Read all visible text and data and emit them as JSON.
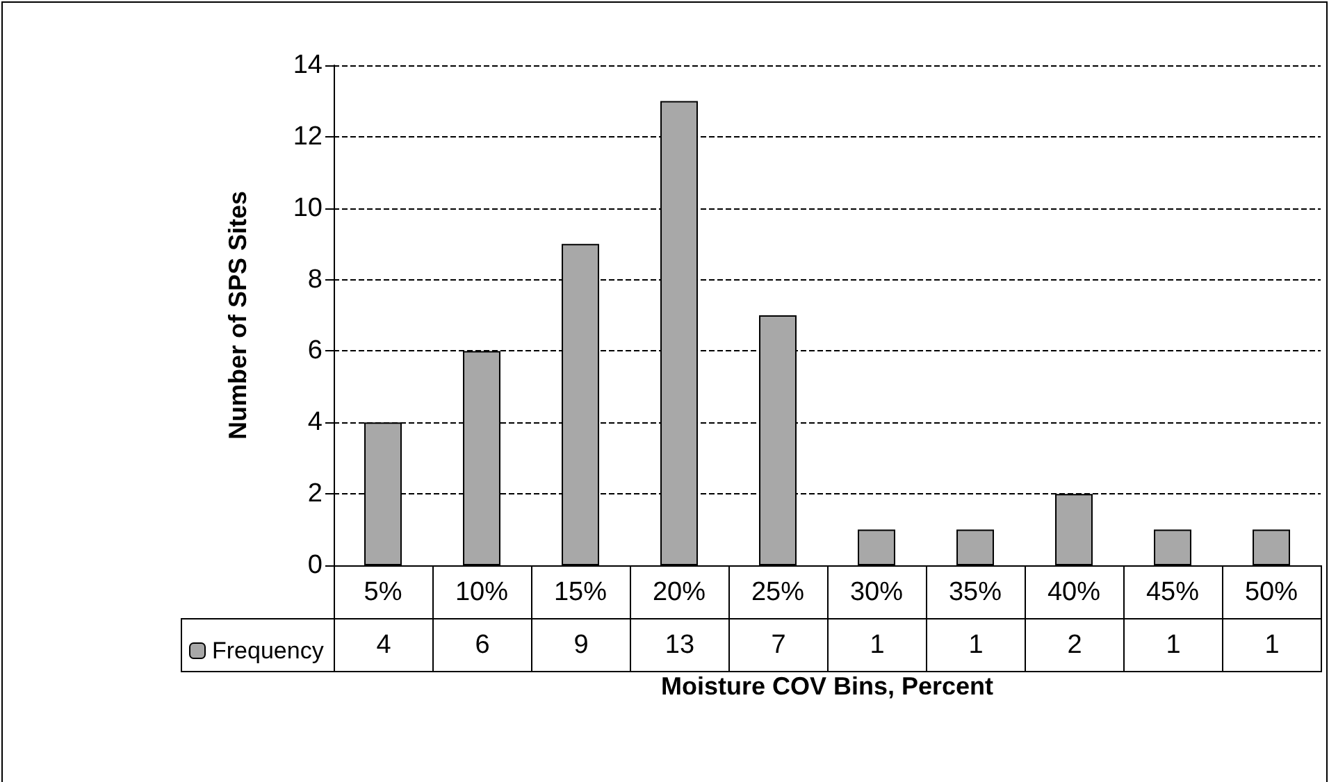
{
  "chart_data": {
    "type": "bar",
    "xlabel": "Moisture COV Bins, Percent",
    "ylabel": "Number of SPS Sites",
    "categories": [
      "5%",
      "10%",
      "15%",
      "20%",
      "25%",
      "30%",
      "35%",
      "40%",
      "45%",
      "50%"
    ],
    "series": [
      {
        "name": "Frequency",
        "color": "#a8a8a8",
        "values": [
          4,
          6,
          9,
          13,
          7,
          1,
          1,
          2,
          1,
          1
        ]
      }
    ],
    "ylim": [
      0,
      14
    ],
    "yticks": [
      0,
      2,
      4,
      6,
      8,
      10,
      12,
      14
    ],
    "grid": "y",
    "legend": "bottom left",
    "data_labels": true
  }
}
